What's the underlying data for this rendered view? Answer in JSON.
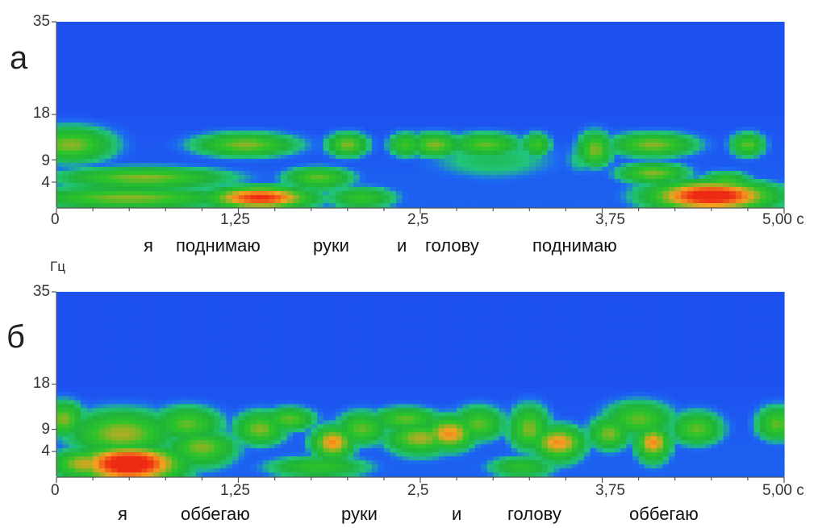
{
  "chart_data": [
    {
      "type": "heatmap",
      "panel_label": "а",
      "x_ticks": [
        "0",
        "1,25",
        "2,5",
        "3,75",
        "5,00 с"
      ],
      "x_tick_values": [
        0,
        1.25,
        2.5,
        3.75,
        5.0
      ],
      "xlim": [
        0,
        5.0
      ],
      "y_ticks": [
        "35",
        "18",
        "9",
        "4"
      ],
      "y_tick_values": [
        35,
        18,
        9,
        4
      ],
      "ylim": [
        0,
        35
      ],
      "y_unit": "Гц",
      "words": [
        "я",
        "поднимаю",
        "руки",
        "и",
        "голову",
        "поднимаю"
      ],
      "colormap": [
        "#1e3ef0",
        "#1c6cf0",
        "#21c47a",
        "#1fb23a",
        "#2cc42a",
        "#f5a21f",
        "#ee2a14"
      ],
      "energy_blobs": [
        {
          "t": 0.1,
          "f": 12,
          "st": 0.25,
          "sf": 3,
          "v": 0.95
        },
        {
          "t": 1.3,
          "f": 12,
          "st": 0.3,
          "sf": 2,
          "v": 0.95
        },
        {
          "t": 2.0,
          "f": 12,
          "st": 0.12,
          "sf": 2,
          "v": 0.95
        },
        {
          "t": 2.4,
          "f": 12,
          "st": 0.1,
          "sf": 2,
          "v": 0.85
        },
        {
          "t": 2.6,
          "f": 12,
          "st": 0.15,
          "sf": 2,
          "v": 0.95
        },
        {
          "t": 2.95,
          "f": 12,
          "st": 0.2,
          "sf": 2,
          "v": 0.9
        },
        {
          "t": 3.3,
          "f": 12,
          "st": 0.08,
          "sf": 2,
          "v": 0.85
        },
        {
          "t": 3.7,
          "f": 11,
          "st": 0.1,
          "sf": 3,
          "v": 0.95
        },
        {
          "t": 4.1,
          "f": 12,
          "st": 0.25,
          "sf": 2,
          "v": 0.95
        },
        {
          "t": 4.75,
          "f": 12,
          "st": 0.1,
          "sf": 2,
          "v": 0.9
        },
        {
          "t": 0.6,
          "f": 5,
          "st": 0.5,
          "sf": 2,
          "v": 0.95
        },
        {
          "t": 1.8,
          "f": 5,
          "st": 0.2,
          "sf": 2,
          "v": 0.9
        },
        {
          "t": 4.1,
          "f": 6,
          "st": 0.2,
          "sf": 2,
          "v": 0.95
        },
        {
          "t": 4.6,
          "f": 4,
          "st": 0.15,
          "sf": 2,
          "v": 0.85
        },
        {
          "t": 1.4,
          "f": 1.5,
          "st": 0.3,
          "sf": 1.5,
          "v": 1.35
        },
        {
          "t": 4.5,
          "f": 1.8,
          "st": 0.35,
          "sf": 2,
          "v": 1.45
        },
        {
          "t": 0.5,
          "f": 1.5,
          "st": 0.6,
          "sf": 1.5,
          "v": 0.95
        },
        {
          "t": 2.1,
          "f": 1.5,
          "st": 0.2,
          "sf": 1.5,
          "v": 0.8
        },
        {
          "t": 3.0,
          "f": 9,
          "st": 0.4,
          "sf": 4,
          "v": 0.5
        },
        {
          "t": 3.6,
          "f": 9,
          "st": 0.1,
          "sf": 3,
          "v": 0.45
        }
      ]
    },
    {
      "type": "heatmap",
      "panel_label": "б",
      "x_ticks": [
        "0",
        "1,25",
        "2,5",
        "3,75",
        "5,00 с"
      ],
      "x_tick_values": [
        0,
        1.25,
        2.5,
        3.75,
        5.0
      ],
      "xlim": [
        0,
        5.0
      ],
      "y_ticks": [
        "35",
        "18",
        "9",
        "4"
      ],
      "y_tick_values": [
        35,
        18,
        9,
        4
      ],
      "ylim": [
        0,
        35
      ],
      "y_unit": "Гц",
      "words": [
        "я",
        "оббегаю",
        "руки",
        "и",
        "голову",
        "оббегаю"
      ],
      "colormap": [
        "#1e3ef0",
        "#1c6cf0",
        "#21c47a",
        "#1fb23a",
        "#2cc42a",
        "#f5a21f",
        "#ee2a14"
      ],
      "energy_blobs": [
        {
          "t": 0.05,
          "f": 11,
          "st": 0.12,
          "sf": 3,
          "v": 0.95
        },
        {
          "t": 0.45,
          "f": 8,
          "st": 0.3,
          "sf": 4,
          "v": 1.0
        },
        {
          "t": 0.9,
          "f": 10,
          "st": 0.2,
          "sf": 3,
          "v": 0.9
        },
        {
          "t": 1.0,
          "f": 5,
          "st": 0.2,
          "sf": 3,
          "v": 0.95
        },
        {
          "t": 0.5,
          "f": 2,
          "st": 0.3,
          "sf": 2.5,
          "v": 1.5
        },
        {
          "t": 0.2,
          "f": 2,
          "st": 0.2,
          "sf": 2,
          "v": 1.05
        },
        {
          "t": 1.4,
          "f": 9,
          "st": 0.15,
          "sf": 3,
          "v": 0.95
        },
        {
          "t": 1.6,
          "f": 11,
          "st": 0.15,
          "sf": 2,
          "v": 0.9
        },
        {
          "t": 1.9,
          "f": 6,
          "st": 0.12,
          "sf": 3,
          "v": 1.15
        },
        {
          "t": 2.1,
          "f": 9,
          "st": 0.15,
          "sf": 3,
          "v": 0.9
        },
        {
          "t": 2.5,
          "f": 7,
          "st": 0.2,
          "sf": 3,
          "v": 1.0
        },
        {
          "t": 2.7,
          "f": 8,
          "st": 0.15,
          "sf": 3,
          "v": 1.15
        },
        {
          "t": 2.4,
          "f": 11,
          "st": 0.2,
          "sf": 2,
          "v": 0.9
        },
        {
          "t": 2.9,
          "f": 10,
          "st": 0.15,
          "sf": 3,
          "v": 0.9
        },
        {
          "t": 3.25,
          "f": 9,
          "st": 0.12,
          "sf": 4,
          "v": 0.95
        },
        {
          "t": 3.45,
          "f": 6,
          "st": 0.15,
          "sf": 3,
          "v": 1.15
        },
        {
          "t": 3.8,
          "f": 8,
          "st": 0.12,
          "sf": 3,
          "v": 0.95
        },
        {
          "t": 4.0,
          "f": 11,
          "st": 0.2,
          "sf": 3,
          "v": 0.9
        },
        {
          "t": 4.1,
          "f": 6,
          "st": 0.1,
          "sf": 3,
          "v": 1.15
        },
        {
          "t": 4.4,
          "f": 9,
          "st": 0.15,
          "sf": 3,
          "v": 0.9
        },
        {
          "t": 4.95,
          "f": 10,
          "st": 0.12,
          "sf": 3,
          "v": 0.9
        },
        {
          "t": 1.8,
          "f": 1.5,
          "st": 0.3,
          "sf": 1.5,
          "v": 0.8
        },
        {
          "t": 3.2,
          "f": 1.5,
          "st": 0.2,
          "sf": 1.5,
          "v": 0.75
        }
      ]
    }
  ]
}
